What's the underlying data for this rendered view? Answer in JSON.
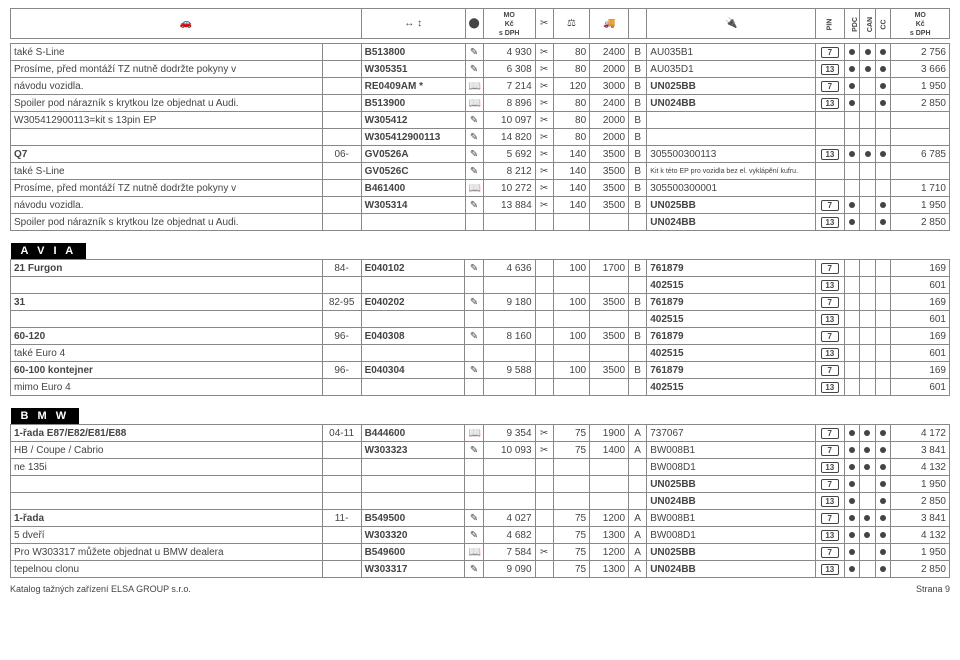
{
  "layout": {
    "cols": [
      "240",
      "30",
      "80",
      "14",
      "40",
      "14",
      "28",
      "30",
      "14",
      "130",
      "22",
      "12",
      "12",
      "12",
      "45"
    ],
    "header_labels": [
      "PIN",
      "PDC",
      "CAN",
      "CC"
    ]
  },
  "footer": {
    "left": "Katalog tažných zařízení ELSA GROUP s.r.o.",
    "right": "Strana 9"
  },
  "section1_rows": [
    {
      "c0": "také S-Line",
      "c2": "B513800",
      "i3": "✎",
      "c4": "4 930",
      "i5": "✂",
      "c6": "80",
      "c7": "2400",
      "c8": "B",
      "c9": "AU035B1",
      "p": "7",
      "d1": "1",
      "d2": "1",
      "d3": "1",
      "c14": "2 756",
      "bold2": true
    },
    {
      "c0": "Prosíme, před montáží TZ nutně dodržte pokyny v",
      "c2": "W305351",
      "i3": "✎",
      "c4": "6 308",
      "i5": "✂",
      "c6": "80",
      "c7": "2000",
      "c8": "B",
      "c9": "AU035D1",
      "p": "13",
      "d1": "1",
      "d2": "1",
      "d3": "1",
      "c14": "3 666",
      "bold2": true
    },
    {
      "c0": "návodu vozidla.",
      "c2": "RE0409AM *",
      "i3": "📖",
      "c4": "7 214",
      "i5": "✂",
      "c6": "120",
      "c7": "3000",
      "c8": "B",
      "c9": "UN025BB",
      "p": "7",
      "d1": "1",
      "d2": "",
      "d3": "1",
      "c14": "1 950",
      "bold2": true,
      "bold9": true
    },
    {
      "c0": "Spoiler pod nárazník s krytkou lze objednat u Audi.",
      "c2": "B513900",
      "i3": "📖",
      "c4": "8 896",
      "i5": "✂",
      "c6": "80",
      "c7": "2400",
      "c8": "B",
      "c9": "UN024BB",
      "p": "13",
      "d1": "1",
      "d2": "",
      "d3": "1",
      "c14": "2 850",
      "bold2": true,
      "bold9": true
    },
    {
      "c0": "W305412900113=kit s 13pin EP",
      "c2": "W305412",
      "i3": "✎",
      "c4": "10 097",
      "i5": "✂",
      "c6": "80",
      "c7": "2000",
      "c8": "B",
      "c9": "",
      "p": "",
      "d1": "",
      "d2": "",
      "d3": "",
      "c14": "",
      "bold2": true
    },
    {
      "c0": "",
      "c2": "W305412900113",
      "i3": "✎",
      "c4": "14 820",
      "i5": "✂",
      "c6": "80",
      "c7": "2000",
      "c8": "B",
      "c9": "",
      "p": "",
      "d1": "",
      "d2": "",
      "d3": "",
      "c14": "",
      "bold2": true
    },
    {
      "c0": "Q7",
      "c1": "06-",
      "c2": "GV0526A",
      "i3": "✎",
      "c4": "5 692",
      "i5": "✂",
      "c6": "140",
      "c7": "3500",
      "c8": "B",
      "c9": "305500300113",
      "p": "13",
      "d1": "1",
      "d2": "1",
      "d3": "1",
      "c14": "6 785",
      "bold0": true,
      "bold2": true
    },
    {
      "c0": "také S-Line",
      "c2": "GV0526C",
      "i3": "✎",
      "c4": "8 212",
      "i5": "✂",
      "c6": "140",
      "c7": "3500",
      "c8": "B",
      "c9": "Kit k této EP pro vozidla bez el. vyklápění kufru.",
      "p": "",
      "d1": "",
      "d2": "",
      "d3": "",
      "c14": "",
      "bold2": true,
      "tiny9": true
    },
    {
      "c0": "Prosíme, před montáží TZ nutně dodržte pokyny v",
      "c2": "B461400",
      "i3": "📖",
      "c4": "10 272",
      "i5": "✂",
      "c6": "140",
      "c7": "3500",
      "c8": "B",
      "c9": "305500300001",
      "p": "",
      "d1": "",
      "d2": "",
      "d3": "",
      "c14": "1 710",
      "bold2": true
    },
    {
      "c0": "návodu vozidla.",
      "c2": "W305314",
      "i3": "✎",
      "c4": "13 884",
      "i5": "✂",
      "c6": "140",
      "c7": "3500",
      "c8": "B",
      "c9": "UN025BB",
      "p": "7",
      "d1": "1",
      "d2": "",
      "d3": "1",
      "c14": "1 950",
      "bold2": true,
      "bold9": true
    },
    {
      "c0": "Spoiler pod nárazník s krytkou lze objednat u Audi.",
      "c2": "",
      "i3": "",
      "c4": "",
      "i5": "",
      "c6": "",
      "c7": "",
      "c8": "",
      "c9": "UN024BB",
      "p": "13",
      "d1": "1",
      "d2": "",
      "d3": "1",
      "c14": "2 850",
      "bold9": true
    }
  ],
  "sections": [
    {
      "title": "A V I A",
      "rows": [
        {
          "c0": "21 Furgon",
          "c1": "84-",
          "c2": "E040102",
          "i3": "✎",
          "c4": "4 636",
          "c6": "100",
          "c7": "1700",
          "c8": "B",
          "c9": "761879",
          "p": "7",
          "c14": "169",
          "bold0": true,
          "bold2": true,
          "bold9": true
        },
        {
          "c0": "",
          "c2": "",
          "c4": "",
          "c6": "",
          "c7": "",
          "c8": "",
          "c9": "402515",
          "p": "13",
          "c14": "601",
          "bold9": true
        },
        {
          "c0": "31",
          "c1": "82-95",
          "c2": "E040202",
          "i3": "✎",
          "c4": "9 180",
          "c6": "100",
          "c7": "3500",
          "c8": "B",
          "c9": "761879",
          "p": "7",
          "c14": "169",
          "bold0": true,
          "bold2": true,
          "bold9": true
        },
        {
          "c0": "",
          "c2": "",
          "c4": "",
          "c6": "",
          "c7": "",
          "c8": "",
          "c9": "402515",
          "p": "13",
          "c14": "601",
          "bold9": true
        },
        {
          "c0": "60-120",
          "c1": "96-",
          "c2": "E040308",
          "i3": "✎",
          "c4": "8 160",
          "c6": "100",
          "c7": "3500",
          "c8": "B",
          "c9": "761879",
          "p": "7",
          "c14": "169",
          "bold0": true,
          "bold2": true,
          "bold9": true
        },
        {
          "c0": "také Euro 4",
          "c2": "",
          "c4": "",
          "c6": "",
          "c7": "",
          "c8": "",
          "c9": "402515",
          "p": "13",
          "c14": "601",
          "bold9": true
        },
        {
          "c0": "60-100 kontejner",
          "c1": "96-",
          "c2": "E040304",
          "i3": "✎",
          "c4": "9 588",
          "c6": "100",
          "c7": "3500",
          "c8": "B",
          "c9": "761879",
          "p": "7",
          "c14": "169",
          "bold0": true,
          "bold2": true,
          "bold9": true
        },
        {
          "c0": "mimo Euro 4",
          "c2": "",
          "c4": "",
          "c6": "",
          "c7": "",
          "c8": "",
          "c9": "402515",
          "p": "13",
          "c14": "601",
          "bold9": true
        }
      ]
    },
    {
      "title": "B M W",
      "rows": [
        {
          "c0": "1-řada E87/E82/E81/E88",
          "c1": "04-11",
          "c2": "B444600",
          "i3": "📖",
          "c4": "9 354",
          "i5": "✂",
          "c6": "75",
          "c7": "1900",
          "c8": "A",
          "c9": "737067",
          "p": "7",
          "d1": "1",
          "d2": "1",
          "d3": "1",
          "c14": "4 172",
          "bold0": true,
          "bold2": true
        },
        {
          "c0": "HB / Coupe / Cabrio",
          "c2": "W303323",
          "i3": "✎",
          "c4": "10 093",
          "i5": "✂",
          "c6": "75",
          "c7": "1400",
          "c8": "A",
          "c9": "BW008B1",
          "p": "7",
          "d1": "1",
          "d2": "1",
          "d3": "1",
          "c14": "3 841",
          "bold2": true
        },
        {
          "c0": "ne 135i",
          "c2": "",
          "c4": "",
          "c6": "",
          "c7": "",
          "c8": "",
          "c9": "BW008D1",
          "p": "13",
          "d1": "1",
          "d2": "1",
          "d3": "1",
          "c14": "4 132"
        },
        {
          "c0": "",
          "c2": "",
          "c4": "",
          "c6": "",
          "c7": "",
          "c8": "",
          "c9": "UN025BB",
          "p": "7",
          "d1": "1",
          "d2": "",
          "d3": "1",
          "c14": "1 950",
          "bold9": true
        },
        {
          "c0": "",
          "c2": "",
          "c4": "",
          "c6": "",
          "c7": "",
          "c8": "",
          "c9": "UN024BB",
          "p": "13",
          "d1": "1",
          "d2": "",
          "d3": "1",
          "c14": "2 850",
          "bold9": true
        },
        {
          "c0": "1-řada",
          "c1": "11-",
          "c2": "B549500",
          "i3": "✎",
          "c4": "4 027",
          "c6": "75",
          "c7": "1200",
          "c8": "A",
          "c9": "BW008B1",
          "p": "7",
          "d1": "1",
          "d2": "1",
          "d3": "1",
          "c14": "3 841",
          "bold0": true,
          "bold2": true
        },
        {
          "c0": "5 dveří",
          "c2": "W303320",
          "i3": "✎",
          "c4": "4 682",
          "c6": "75",
          "c7": "1300",
          "c8": "A",
          "c9": "BW008D1",
          "p": "13",
          "d1": "1",
          "d2": "1",
          "d3": "1",
          "c14": "4 132",
          "bold2": true
        },
        {
          "c0": "Pro W303317 můžete objednat u BMW dealera",
          "c2": "B549600",
          "i3": "📖",
          "c4": "7 584",
          "i5": "✂",
          "c6": "75",
          "c7": "1200",
          "c8": "A",
          "c9": "UN025BB",
          "p": "7",
          "d1": "1",
          "d2": "",
          "d3": "1",
          "c14": "1 950",
          "bold2": true,
          "bold9": true
        },
        {
          "c0": "tepelnou clonu",
          "c2": "W303317",
          "i3": "✎",
          "c4": "9 090",
          "c6": "75",
          "c7": "1300",
          "c8": "A",
          "c9": "UN024BB",
          "p": "13",
          "d1": "1",
          "d2": "",
          "d3": "1",
          "c14": "2 850",
          "bold2": true,
          "bold9": true
        }
      ]
    }
  ]
}
